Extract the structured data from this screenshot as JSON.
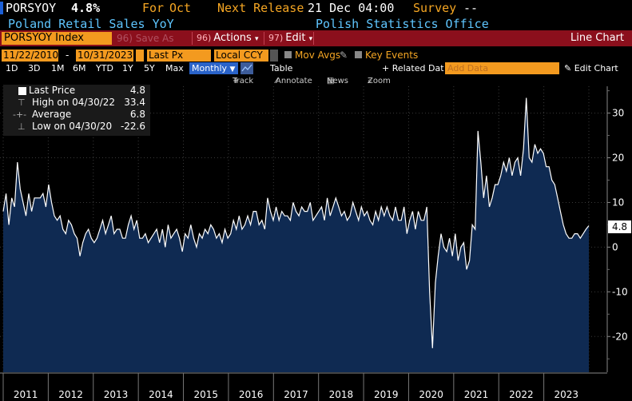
{
  "header": {
    "ticker": "PORSYOY",
    "price": "4.8%",
    "for_label": "For",
    "period": "Oct",
    "next_release_label": "Next Release",
    "next_release": "21 Dec 04:00",
    "survey_label": "Survey",
    "survey": "--",
    "name": "Poland Retail Sales YoY",
    "source": "Polish Statistics Office"
  },
  "toolbar": {
    "security": "PORSYOY Index",
    "save_label": "96) Save As",
    "actions_num": "96)",
    "actions_label": "Actions",
    "edit_num": "97)",
    "edit_label": "Edit",
    "chart_type": "Line Chart"
  },
  "settings": {
    "start_date": "11/22/2010",
    "end_date": "10/31/2023",
    "field": "Last Px",
    "currency": "Local CCY",
    "mov_avgs": "Mov Avgs",
    "key_events": "Key Events"
  },
  "periods": [
    "1D",
    "3D",
    "1M",
    "6M",
    "YTD",
    "1Y",
    "5Y",
    "Max"
  ],
  "frequency": "Monthly",
  "table_label": "Table",
  "related_label": "+ Related Dat",
  "add_data_placeholder": "Add Data",
  "edit_chart_label": "Edit Chart",
  "tools": [
    "Track",
    "Annotate",
    "News",
    "Zoom"
  ],
  "legend": {
    "last_label": "Last Price",
    "last_value": "4.8",
    "high_label": "High on 04/30/22",
    "high_value": "33.4",
    "avg_label": "Average",
    "avg_value": "6.8",
    "low_label": "Low on 04/30/20",
    "low_value": "-22.6"
  },
  "last_box": "4.8",
  "colors": {
    "orange": "#f39a1f",
    "red_bar": "#8b0f1c",
    "area_fill": "#0f2a52",
    "line": "#ffffff",
    "title_blue": "#5fc6ff"
  },
  "chart_data": {
    "type": "area",
    "x_labels": [
      "2011",
      "2012",
      "2013",
      "2014",
      "2015",
      "2016",
      "2017",
      "2018",
      "2019",
      "2020",
      "2021",
      "2022",
      "2023"
    ],
    "y_ticks": [
      30,
      20,
      10,
      0,
      -10,
      -20
    ],
    "ylim": [
      -28,
      36
    ],
    "series": [
      {
        "values": [
          8,
          12,
          5,
          11,
          9,
          19,
          13,
          10,
          7,
          12,
          8,
          11,
          11,
          11,
          12,
          9,
          14,
          10,
          7,
          6,
          7,
          4,
          3,
          6,
          5,
          3,
          2,
          -2,
          1,
          3,
          4,
          2,
          1,
          2,
          4,
          6,
          3,
          5,
          7,
          3,
          4,
          4,
          2,
          2,
          5,
          7,
          4,
          6,
          2,
          2,
          3,
          1,
          2,
          3,
          4,
          1,
          4,
          0,
          5,
          2,
          3,
          4,
          2,
          -1,
          3,
          2,
          5,
          2,
          0,
          3,
          2,
          4,
          3,
          5,
          4,
          2,
          3,
          1,
          4,
          2,
          3,
          6,
          4,
          7,
          4,
          5,
          7,
          5,
          8,
          8,
          5,
          6,
          4,
          11,
          8,
          6,
          9,
          6,
          8,
          7,
          7,
          6,
          10,
          8,
          7,
          9,
          8,
          8,
          10,
          6,
          7,
          8,
          9,
          6,
          11,
          7,
          9,
          11,
          9,
          7,
          8,
          6,
          7,
          10,
          8,
          6,
          9,
          7,
          8,
          6,
          5,
          8,
          6,
          9,
          7,
          9,
          7,
          6,
          9,
          6,
          6,
          9,
          3,
          6,
          8,
          4,
          8,
          6,
          6,
          9,
          -10,
          -22.6,
          -8,
          -2,
          3,
          0,
          -1,
          2,
          -2,
          3,
          -3,
          0,
          1,
          -5,
          -3,
          5,
          4,
          26,
          19,
          11,
          16,
          9,
          11,
          14,
          14,
          16,
          19,
          17,
          20,
          16,
          19,
          20,
          16,
          22,
          33.4,
          20,
          19,
          23,
          21,
          22,
          21,
          18,
          18,
          15,
          14,
          11,
          8,
          5,
          3,
          2,
          2,
          3,
          3,
          2,
          3,
          4,
          4.8
        ]
      }
    ]
  }
}
